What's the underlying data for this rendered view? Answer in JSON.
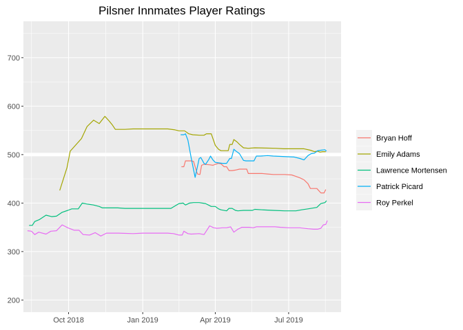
{
  "chart_data": {
    "type": "line",
    "title": "Pilsner Innmates Player Ratings",
    "xlabel": "",
    "ylabel": "",
    "xlim": [
      "2018-08-06",
      "2019-09-04"
    ],
    "ylim": [
      175,
      775
    ],
    "y_ticks": [
      200,
      300,
      400,
      500,
      600,
      700
    ],
    "x_ticks": [
      {
        "date": "2018-10-01",
        "label": "Oct 2018"
      },
      {
        "date": "2019-01-01",
        "label": "Jan 2019"
      },
      {
        "date": "2019-04-01",
        "label": "Apr 2019"
      },
      {
        "date": "2019-07-01",
        "label": "Jul 2019"
      }
    ],
    "grid": true,
    "legend_position": "right",
    "reference_line": {
      "y": 500,
      "color": "#ffffff"
    },
    "series": [
      {
        "name": "Bryan Hoff",
        "color": "#F8766D",
        "points": [
          [
            "2019-02-18",
            475
          ],
          [
            "2019-02-21",
            475
          ],
          [
            "2019-02-23",
            487
          ],
          [
            "2019-03-02",
            487
          ],
          [
            "2019-03-05",
            486
          ],
          [
            "2019-03-08",
            469
          ],
          [
            "2019-03-10",
            460
          ],
          [
            "2019-03-13",
            459
          ],
          [
            "2019-03-15",
            478
          ],
          [
            "2019-03-18",
            480
          ],
          [
            "2019-03-25",
            479
          ],
          [
            "2019-03-29",
            478
          ],
          [
            "2019-04-01",
            480
          ],
          [
            "2019-04-05",
            482
          ],
          [
            "2019-04-08",
            481
          ],
          [
            "2019-04-12",
            475
          ],
          [
            "2019-04-15",
            475
          ],
          [
            "2019-04-18",
            467
          ],
          [
            "2019-04-22",
            467
          ],
          [
            "2019-04-26",
            468
          ],
          [
            "2019-05-01",
            470
          ],
          [
            "2019-05-06",
            470
          ],
          [
            "2019-05-10",
            470
          ],
          [
            "2019-05-12",
            461
          ],
          [
            "2019-05-20",
            461
          ],
          [
            "2019-05-29",
            461
          ],
          [
            "2019-06-05",
            460
          ],
          [
            "2019-06-12",
            459
          ],
          [
            "2019-06-26",
            459
          ],
          [
            "2019-07-05",
            458
          ],
          [
            "2019-07-10",
            455
          ],
          [
            "2019-07-15",
            452
          ],
          [
            "2019-07-20",
            448
          ],
          [
            "2019-07-25",
            440
          ],
          [
            "2019-07-28",
            430
          ],
          [
            "2019-08-05",
            430
          ],
          [
            "2019-08-10",
            421
          ],
          [
            "2019-08-14",
            421
          ],
          [
            "2019-08-16",
            428
          ]
        ]
      },
      {
        "name": "Emily Adams",
        "color": "#A3A500",
        "points": [
          [
            "2018-09-20",
            426
          ],
          [
            "2018-09-29",
            473
          ],
          [
            "2018-10-03",
            507
          ],
          [
            "2018-10-17",
            533
          ],
          [
            "2018-10-24",
            558
          ],
          [
            "2018-11-01",
            571
          ],
          [
            "2018-11-08",
            564
          ],
          [
            "2018-11-15",
            579
          ],
          [
            "2018-11-20",
            570
          ],
          [
            "2018-11-24",
            562
          ],
          [
            "2018-11-28",
            552
          ],
          [
            "2018-12-10",
            552
          ],
          [
            "2018-12-20",
            553
          ],
          [
            "2019-01-01",
            553
          ],
          [
            "2019-02-01",
            553
          ],
          [
            "2019-02-10",
            551
          ],
          [
            "2019-02-15",
            549
          ],
          [
            "2019-02-22",
            549
          ],
          [
            "2019-02-27",
            543
          ],
          [
            "2019-03-04",
            541
          ],
          [
            "2019-03-13",
            540
          ],
          [
            "2019-03-18",
            540
          ],
          [
            "2019-03-21",
            543
          ],
          [
            "2019-03-27",
            543
          ],
          [
            "2019-04-01",
            519
          ],
          [
            "2019-04-05",
            511
          ],
          [
            "2019-04-08",
            508
          ],
          [
            "2019-04-12",
            508
          ],
          [
            "2019-04-17",
            508
          ],
          [
            "2019-04-19",
            521
          ],
          [
            "2019-04-22",
            521
          ],
          [
            "2019-04-24",
            531
          ],
          [
            "2019-04-28",
            526
          ],
          [
            "2019-05-01",
            521
          ],
          [
            "2019-05-06",
            514
          ],
          [
            "2019-05-12",
            513
          ],
          [
            "2019-05-20",
            514
          ],
          [
            "2019-06-15",
            513
          ],
          [
            "2019-06-25",
            512
          ],
          [
            "2019-07-20",
            512
          ],
          [
            "2019-07-28",
            509
          ],
          [
            "2019-08-02",
            506
          ],
          [
            "2019-08-06",
            507
          ],
          [
            "2019-08-09",
            505
          ],
          [
            "2019-08-12",
            506
          ],
          [
            "2019-08-16",
            506
          ]
        ]
      },
      {
        "name": "Lawrence Mortensen",
        "color": "#00BF7D",
        "points": [
          [
            "2018-08-13",
            354
          ],
          [
            "2018-08-17",
            354
          ],
          [
            "2018-08-20",
            362
          ],
          [
            "2018-08-26",
            366
          ],
          [
            "2018-09-03",
            375
          ],
          [
            "2018-09-10",
            372
          ],
          [
            "2018-09-16",
            373
          ],
          [
            "2018-09-23",
            381
          ],
          [
            "2018-09-30",
            385
          ],
          [
            "2018-10-05",
            388
          ],
          [
            "2018-10-13",
            388
          ],
          [
            "2018-10-18",
            400
          ],
          [
            "2018-10-24",
            398
          ],
          [
            "2018-11-01",
            396
          ],
          [
            "2018-11-08",
            393
          ],
          [
            "2018-11-12",
            390
          ],
          [
            "2018-11-25",
            390
          ],
          [
            "2018-12-01",
            390
          ],
          [
            "2018-12-10",
            389
          ],
          [
            "2019-01-01",
            389
          ],
          [
            "2019-02-05",
            389
          ],
          [
            "2019-02-15",
            399
          ],
          [
            "2019-02-20",
            400
          ],
          [
            "2019-02-23",
            396
          ],
          [
            "2019-02-28",
            400
          ],
          [
            "2019-03-05",
            401
          ],
          [
            "2019-03-12",
            401
          ],
          [
            "2019-03-20",
            399
          ],
          [
            "2019-03-27",
            393
          ],
          [
            "2019-04-01",
            393
          ],
          [
            "2019-04-05",
            388
          ],
          [
            "2019-04-08",
            386
          ],
          [
            "2019-04-15",
            384
          ],
          [
            "2019-04-18",
            389
          ],
          [
            "2019-04-22",
            389
          ],
          [
            "2019-04-26",
            385
          ],
          [
            "2019-04-29",
            384
          ],
          [
            "2019-05-06",
            385
          ],
          [
            "2019-05-13",
            385
          ],
          [
            "2019-05-17",
            385
          ],
          [
            "2019-05-20",
            387
          ],
          [
            "2019-05-29",
            386
          ],
          [
            "2019-06-12",
            385
          ],
          [
            "2019-06-26",
            384
          ],
          [
            "2019-07-10",
            384
          ],
          [
            "2019-07-17",
            386
          ],
          [
            "2019-07-25",
            388
          ],
          [
            "2019-08-05",
            391
          ],
          [
            "2019-08-10",
            399
          ],
          [
            "2019-08-15",
            401
          ],
          [
            "2019-08-17",
            405
          ]
        ]
      },
      {
        "name": "Patrick Picard",
        "color": "#00B0F6",
        "points": [
          [
            "2019-02-17",
            541
          ],
          [
            "2019-02-21",
            541
          ],
          [
            "2019-02-23",
            543
          ],
          [
            "2019-02-26",
            530
          ],
          [
            "2019-03-02",
            494
          ],
          [
            "2019-03-07",
            453
          ],
          [
            "2019-03-12",
            492
          ],
          [
            "2019-03-14",
            494
          ],
          [
            "2019-03-18",
            482
          ],
          [
            "2019-03-20",
            480
          ],
          [
            "2019-03-24",
            490
          ],
          [
            "2019-03-26",
            497
          ],
          [
            "2019-03-29",
            489
          ],
          [
            "2019-04-01",
            484
          ],
          [
            "2019-04-05",
            483
          ],
          [
            "2019-04-10",
            482
          ],
          [
            "2019-04-15",
            482
          ],
          [
            "2019-04-19",
            492
          ],
          [
            "2019-04-21",
            492
          ],
          [
            "2019-04-24",
            511
          ],
          [
            "2019-04-26",
            508
          ],
          [
            "2019-05-01",
            502
          ],
          [
            "2019-05-06",
            488
          ],
          [
            "2019-05-09",
            487
          ],
          [
            "2019-05-19",
            487
          ],
          [
            "2019-05-22",
            497
          ],
          [
            "2019-05-27",
            497
          ],
          [
            "2019-06-05",
            498
          ],
          [
            "2019-06-12",
            497
          ],
          [
            "2019-07-08",
            495
          ],
          [
            "2019-07-15",
            492
          ],
          [
            "2019-07-20",
            489
          ],
          [
            "2019-07-25",
            498
          ],
          [
            "2019-07-29",
            502
          ],
          [
            "2019-08-02",
            503
          ],
          [
            "2019-08-06",
            508
          ],
          [
            "2019-08-10",
            509
          ],
          [
            "2019-08-15",
            510
          ],
          [
            "2019-08-17",
            507
          ]
        ]
      },
      {
        "name": "Roy Perkel",
        "color": "#E76BF3",
        "points": [
          [
            "2018-08-11",
            343
          ],
          [
            "2018-08-16",
            342
          ],
          [
            "2018-08-20",
            335
          ],
          [
            "2018-08-25",
            340
          ],
          [
            "2018-09-03",
            336
          ],
          [
            "2018-09-09",
            342
          ],
          [
            "2018-09-16",
            343
          ],
          [
            "2018-09-23",
            355
          ],
          [
            "2018-09-30",
            349
          ],
          [
            "2018-10-08",
            344
          ],
          [
            "2018-10-14",
            344
          ],
          [
            "2018-10-19",
            335
          ],
          [
            "2018-10-27",
            334
          ],
          [
            "2018-11-03",
            339
          ],
          [
            "2018-11-10",
            332
          ],
          [
            "2018-11-17",
            338
          ],
          [
            "2018-12-02",
            338
          ],
          [
            "2018-12-20",
            337
          ],
          [
            "2019-01-01",
            338
          ],
          [
            "2019-02-01",
            338
          ],
          [
            "2019-02-08",
            337
          ],
          [
            "2019-02-15",
            334
          ],
          [
            "2019-02-19",
            334
          ],
          [
            "2019-02-21",
            342
          ],
          [
            "2019-02-26",
            337
          ],
          [
            "2019-03-02",
            336
          ],
          [
            "2019-03-12",
            337
          ],
          [
            "2019-03-18",
            335
          ],
          [
            "2019-03-20",
            340
          ],
          [
            "2019-03-25",
            353
          ],
          [
            "2019-03-30",
            349
          ],
          [
            "2019-04-03",
            348
          ],
          [
            "2019-04-10",
            349
          ],
          [
            "2019-04-15",
            349
          ],
          [
            "2019-04-20",
            351
          ],
          [
            "2019-04-24",
            340
          ],
          [
            "2019-04-29",
            346
          ],
          [
            "2019-05-04",
            350
          ],
          [
            "2019-05-13",
            350
          ],
          [
            "2019-05-18",
            349
          ],
          [
            "2019-05-22",
            351
          ],
          [
            "2019-06-05",
            351
          ],
          [
            "2019-06-14",
            351
          ],
          [
            "2019-06-21",
            350
          ],
          [
            "2019-07-01",
            349
          ],
          [
            "2019-07-15",
            349
          ],
          [
            "2019-07-25",
            347
          ],
          [
            "2019-08-01",
            346
          ],
          [
            "2019-08-06",
            346
          ],
          [
            "2019-08-10",
            348
          ],
          [
            "2019-08-13",
            355
          ],
          [
            "2019-08-16",
            356
          ],
          [
            "2019-08-18",
            364
          ]
        ]
      }
    ]
  }
}
